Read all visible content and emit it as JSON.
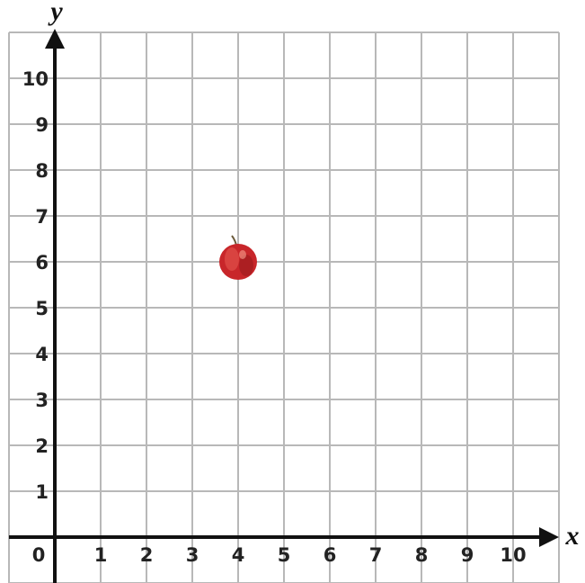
{
  "chart_data": {
    "type": "scatter",
    "x_label": "x",
    "y_label": "y",
    "x": [
      4
    ],
    "values": [
      6
    ],
    "xlim": [
      -1,
      11
    ],
    "ylim": [
      -1,
      11
    ],
    "xticks": [
      0,
      1,
      2,
      3,
      4,
      5,
      6,
      7,
      8,
      9,
      10
    ],
    "yticks": [
      1,
      2,
      3,
      4,
      5,
      6,
      7,
      8,
      9,
      10
    ],
    "grid": true
  }
}
